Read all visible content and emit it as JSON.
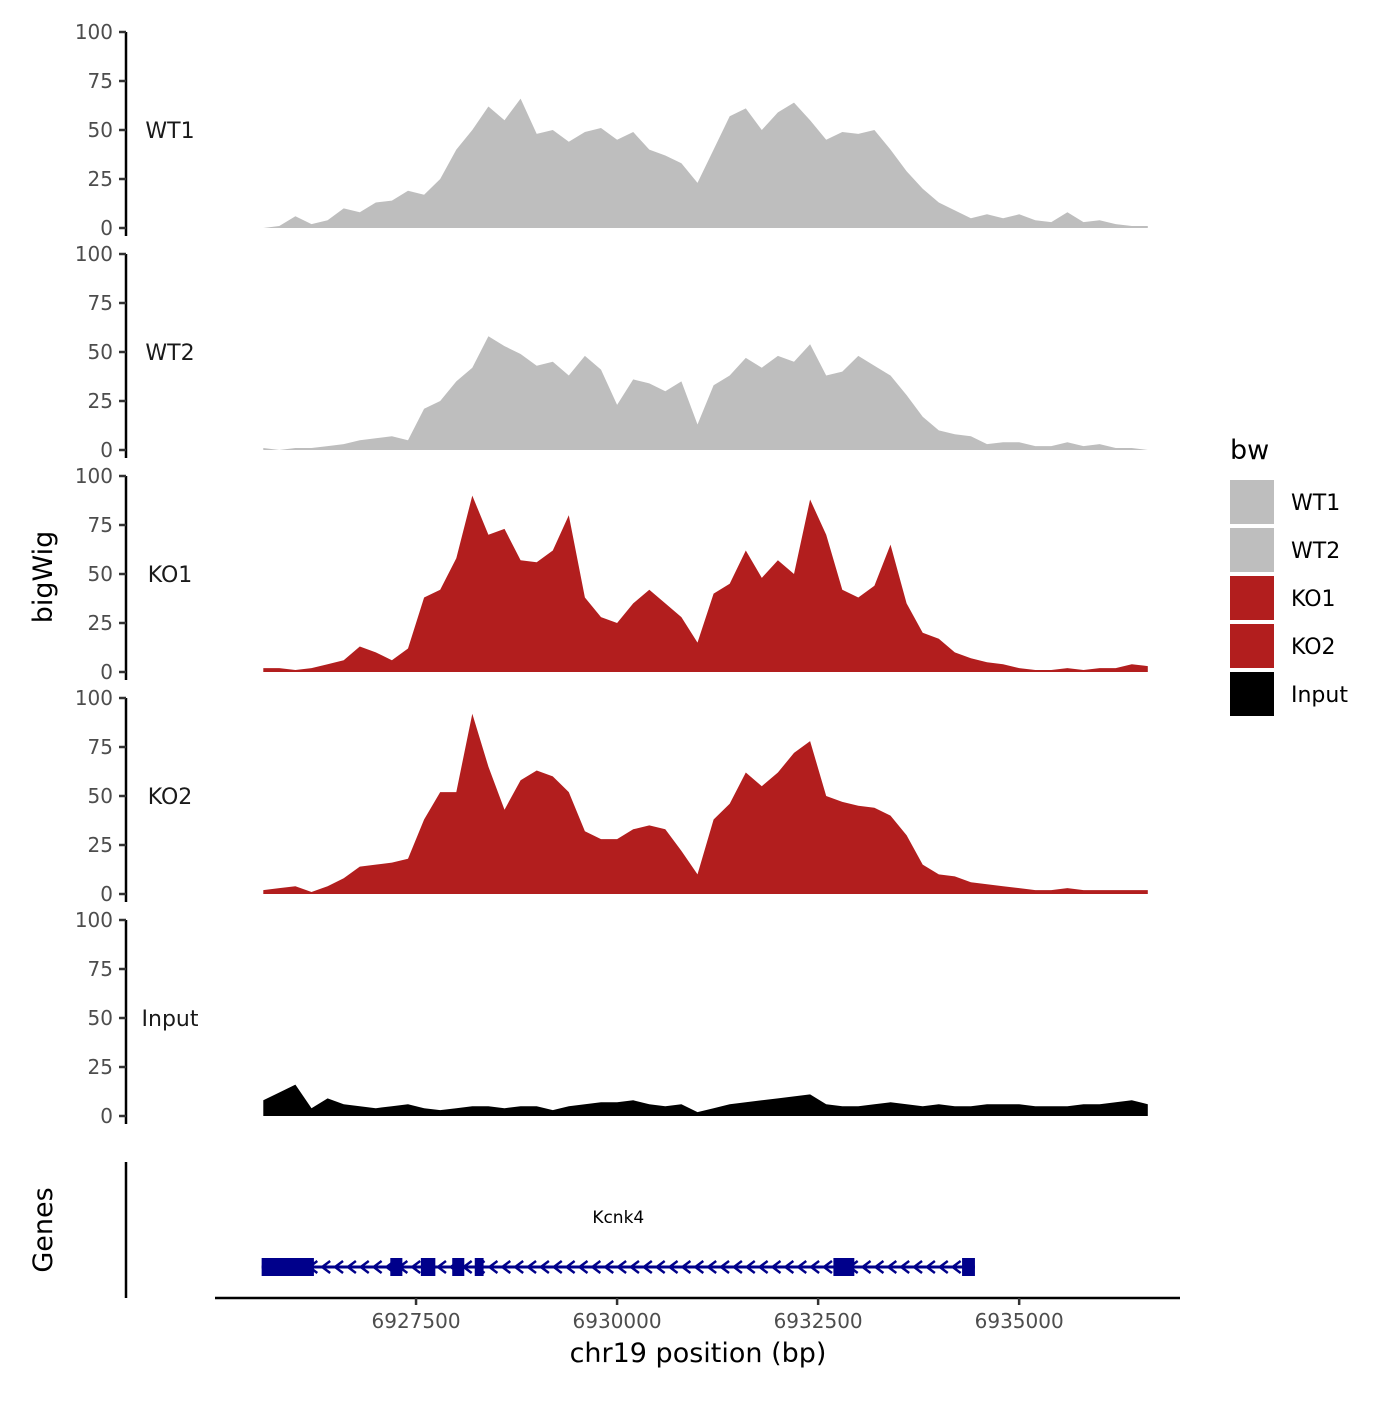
{
  "chart_data": {
    "type": "area",
    "xlabel": "chr19 position (bp)",
    "ylabel": "bigWig",
    "genes_label": "Genes",
    "xlim": [
      6925000,
      6937000
    ],
    "ylim": [
      0,
      100
    ],
    "x_ticks": [
      6927500,
      6930000,
      6932500,
      6935000
    ],
    "x_tick_labels": [
      "6927500",
      "6930000",
      "6932500",
      "6935000"
    ],
    "y_ticks": [
      0,
      25,
      50,
      75,
      100
    ],
    "y_tick_labels": [
      "0",
      "25",
      "50",
      "75",
      "100"
    ],
    "legend": {
      "title": "bw",
      "placement": "right",
      "items": [
        {
          "label": "WT1",
          "color": "#bebebe"
        },
        {
          "label": "WT2",
          "color": "#bebebe"
        },
        {
          "label": "KO1",
          "color": "#b21e1e"
        },
        {
          "label": "KO2",
          "color": "#b21e1e"
        },
        {
          "label": "Input",
          "color": "#000000"
        }
      ]
    },
    "x": [
      6925600,
      6925800,
      6926000,
      6926200,
      6926400,
      6926600,
      6926800,
      6927000,
      6927200,
      6927400,
      6927600,
      6927800,
      6928000,
      6928200,
      6928400,
      6928600,
      6928800,
      6929000,
      6929200,
      6929400,
      6929600,
      6929800,
      6930000,
      6930200,
      6930400,
      6930600,
      6930800,
      6931000,
      6931200,
      6931400,
      6931600,
      6931800,
      6932000,
      6932200,
      6932400,
      6932600,
      6932800,
      6933000,
      6933200,
      6933400,
      6933600,
      6933800,
      6934000,
      6934200,
      6934400,
      6934600,
      6934800,
      6935000,
      6935200,
      6935400,
      6935600,
      6935800,
      6936000,
      6936200,
      6936400,
      6936600
    ],
    "series": [
      {
        "name": "WT1",
        "color": "#bebebe",
        "values": [
          0,
          1,
          6,
          2,
          4,
          10,
          8,
          13,
          14,
          19,
          17,
          25,
          40,
          50,
          62,
          55,
          66,
          48,
          50,
          44,
          49,
          51,
          45,
          49,
          40,
          37,
          33,
          23,
          40,
          57,
          61,
          50,
          59,
          64,
          55,
          45,
          49,
          48,
          50,
          40,
          29,
          20,
          13,
          9,
          5,
          7,
          5,
          7,
          4,
          3,
          8,
          3,
          4,
          2,
          1,
          1
        ]
      },
      {
        "name": "WT2",
        "color": "#bebebe",
        "values": [
          1,
          0,
          1,
          1,
          2,
          3,
          5,
          6,
          7,
          5,
          21,
          25,
          35,
          42,
          58,
          53,
          49,
          43,
          45,
          38,
          48,
          41,
          23,
          36,
          34,
          30,
          35,
          13,
          33,
          38,
          47,
          42,
          48,
          45,
          54,
          38,
          40,
          48,
          43,
          38,
          28,
          17,
          10,
          8,
          7,
          3,
          4,
          4,
          2,
          2,
          4,
          2,
          3,
          1,
          1,
          0
        ]
      },
      {
        "name": "KO1",
        "color": "#b21e1e",
        "values": [
          2,
          2,
          1,
          2,
          4,
          6,
          13,
          10,
          6,
          12,
          38,
          42,
          58,
          90,
          70,
          73,
          57,
          56,
          62,
          80,
          38,
          28,
          25,
          35,
          42,
          35,
          28,
          15,
          40,
          45,
          62,
          48,
          57,
          50,
          88,
          70,
          42,
          38,
          44,
          65,
          35,
          20,
          17,
          10,
          7,
          5,
          4,
          2,
          1,
          1,
          2,
          1,
          2,
          2,
          4,
          3
        ]
      },
      {
        "name": "KO2",
        "color": "#b21e1e",
        "values": [
          2,
          3,
          4,
          1,
          4,
          8,
          14,
          15,
          16,
          18,
          38,
          52,
          52,
          92,
          65,
          43,
          58,
          63,
          60,
          52,
          32,
          28,
          28,
          33,
          35,
          33,
          22,
          10,
          38,
          46,
          62,
          55,
          62,
          72,
          78,
          50,
          47,
          45,
          44,
          40,
          30,
          15,
          10,
          9,
          6,
          5,
          4,
          3,
          2,
          2,
          3,
          2,
          2,
          2,
          2,
          2
        ]
      },
      {
        "name": "Input",
        "color": "#000000",
        "values": [
          8,
          12,
          16,
          4,
          9,
          6,
          5,
          4,
          5,
          6,
          4,
          3,
          4,
          5,
          5,
          4,
          5,
          5,
          3,
          5,
          6,
          7,
          7,
          8,
          6,
          5,
          6,
          2,
          4,
          6,
          7,
          8,
          9,
          10,
          11,
          6,
          5,
          5,
          6,
          7,
          6,
          5,
          6,
          5,
          5,
          6,
          6,
          6,
          5,
          5,
          5,
          6,
          6,
          7,
          8,
          6
        ]
      }
    ],
    "gene": {
      "name": "Kcnk4",
      "start": 6925580,
      "end": 6934450,
      "strand": "-",
      "color": "#00008b",
      "exons": [
        [
          6925580,
          6926230
        ],
        [
          6927180,
          6927330
        ],
        [
          6927560,
          6927740
        ],
        [
          6927950,
          6928100
        ],
        [
          6928230,
          6928340
        ],
        [
          6932690,
          6932950
        ],
        [
          6934290,
          6934450
        ]
      ]
    }
  }
}
